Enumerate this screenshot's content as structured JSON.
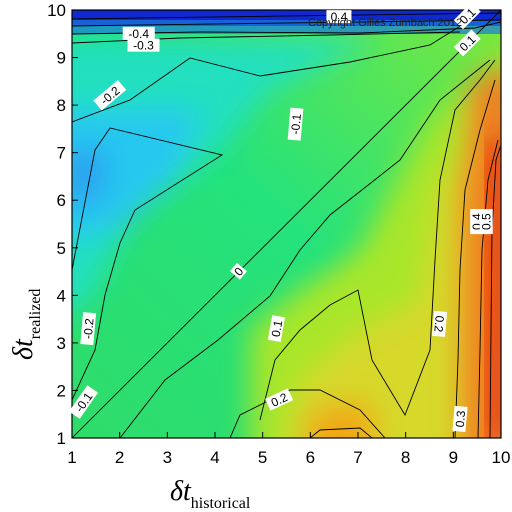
{
  "chart_data": {
    "type": "heatmap",
    "title": "",
    "copyright": "Copyright Gilles Zumbach 2012",
    "xlabel": {
      "main": "δt",
      "sub": "historical"
    },
    "ylabel": {
      "main": "δt",
      "sub": "realized"
    },
    "x_ticks": [
      "1",
      "2",
      "3",
      "4",
      "5",
      "6",
      "7",
      "8",
      "9",
      "10"
    ],
    "y_ticks": [
      "1",
      "2",
      "3",
      "4",
      "5",
      "6",
      "7",
      "8",
      "9",
      "10"
    ],
    "xlim": [
      1,
      10
    ],
    "ylim": [
      1,
      10
    ],
    "grid": false,
    "color_scale": [
      "#0a1ec8",
      "#19c8f0",
      "#1ee678",
      "#c8e61e",
      "#f0a01e",
      "#e61e0a"
    ],
    "contour_labels": [
      {
        "text": "-0.4",
        "x": 2.4,
        "y": 9.5,
        "angle": 0
      },
      {
        "text": "-0.3",
        "x": 2.5,
        "y": 9.25,
        "angle": 0
      },
      {
        "text": "0.4",
        "x": 6.6,
        "y": 9.85,
        "angle": 0
      },
      {
        "text": "0.1",
        "x": 9.3,
        "y": 9.87,
        "angle": -45
      },
      {
        "text": "0.1",
        "x": 9.3,
        "y": 9.3,
        "angle": -45
      },
      {
        "text": "-0.2",
        "x": 1.8,
        "y": 8.2,
        "angle": -40
      },
      {
        "text": "-0.1",
        "x": 5.7,
        "y": 7.6,
        "angle": -85
      },
      {
        "text": "0",
        "x": 4.5,
        "y": 4.5,
        "angle": -50
      },
      {
        "text": "-0.2",
        "x": 1.35,
        "y": 3.3,
        "angle": -85
      },
      {
        "text": "-0.1",
        "x": 1.25,
        "y": 1.75,
        "angle": -55
      },
      {
        "text": "0.1",
        "x": 5.3,
        "y": 3.3,
        "angle": -80
      },
      {
        "text": "0.2",
        "x": 5.35,
        "y": 1.8,
        "angle": -25
      },
      {
        "text": "0.2",
        "x": 8.7,
        "y": 3.4,
        "angle": 95
      },
      {
        "text": "0.3",
        "x": 9.15,
        "y": 1.4,
        "angle": -85
      },
      {
        "text": "0.4",
        "x": 9.5,
        "y": 5.55,
        "angle": -90
      },
      {
        "text": "0.5",
        "x": 9.7,
        "y": 5.55,
        "angle": -90
      }
    ]
  }
}
